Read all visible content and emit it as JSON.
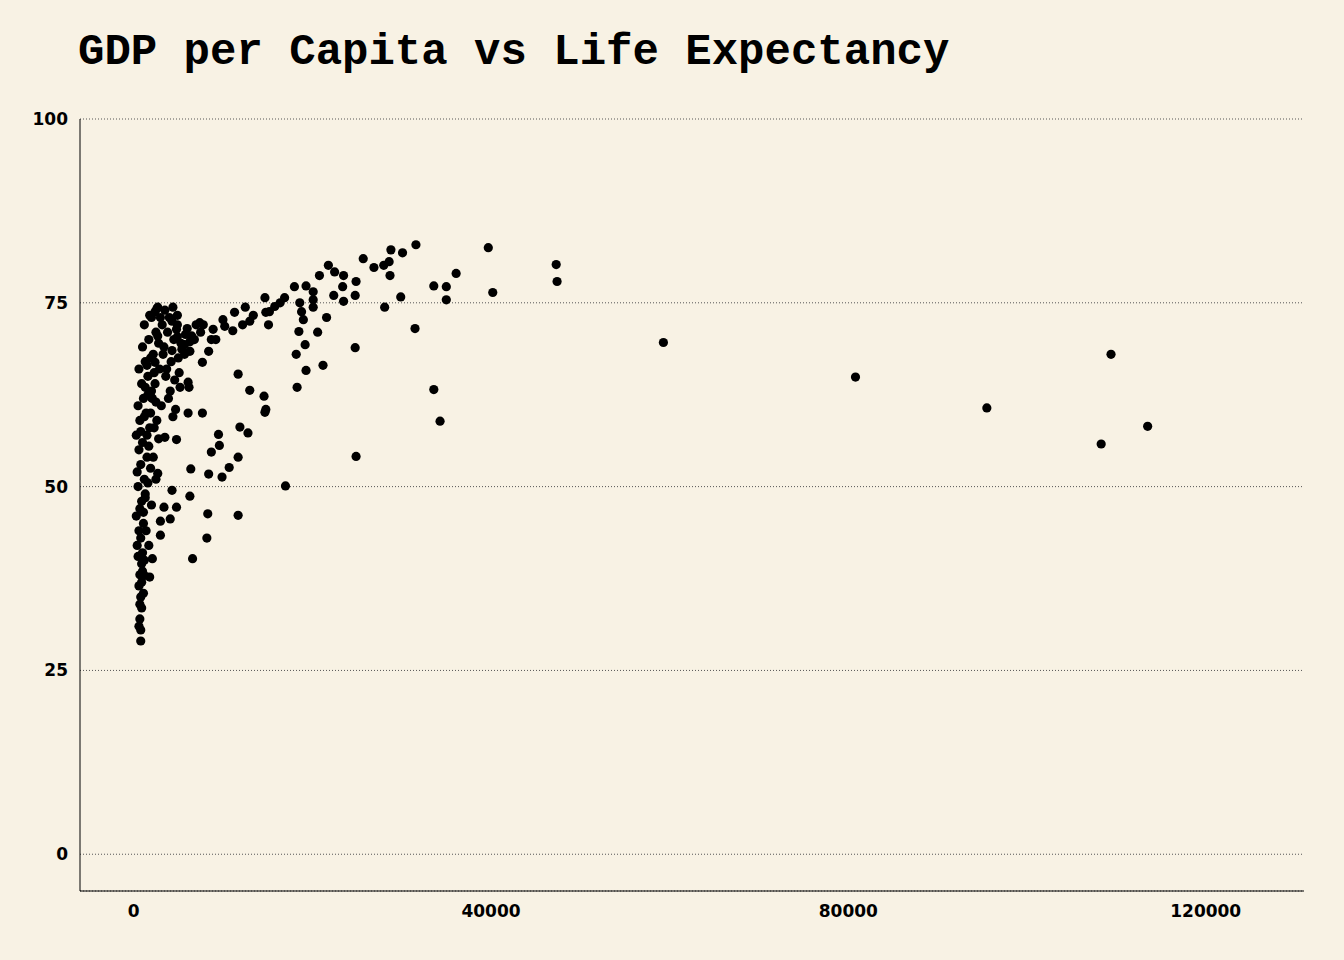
{
  "chart_data": {
    "type": "scatter",
    "title": "GDP per Capita vs Life Expectancy",
    "x": [
      113500,
      109400,
      108300,
      95500,
      80800,
      59300,
      47300,
      47400,
      40200,
      39700,
      36100,
      35000,
      35000,
      33600,
      33600,
      34300,
      31600,
      31500,
      30100,
      29900,
      28800,
      28700,
      28600,
      28000,
      28100,
      26900,
      25700,
      24900,
      24800,
      24800,
      24900,
      23500,
      23500,
      23400,
      22500,
      21800,
      22400,
      20800,
      21600,
      20100,
      20100,
      20100,
      20600,
      21200,
      19300,
      19000,
      19200,
      19300,
      18600,
      18800,
      18500,
      18000,
      18200,
      18300,
      17000,
      16900,
      16400,
      15800,
      15200,
      14700,
      14800,
      15100,
      14600,
      14800,
      14700,
      13400,
      13000,
      12500,
      12200,
      13000,
      12800,
      11700,
      11900,
      11700,
      11700,
      11300,
      11100,
      10700,
      9900,
      10200,
      10000,
      9500,
      9600,
      8700,
      8900,
      9200,
      8700,
      8300,
      8200,
      8400,
      8400,
      7800,
      7400,
      7700,
      7700,
      6400,
      6300,
      6600,
      6800,
      6300,
      6300,
      6200,
      6100,
      6100,
      5700,
      5700,
      5400,
      4900,
      4900,
      4800,
      4900,
      4400,
      4300,
      4800,
      4700,
      4800,
      4300,
      4100,
      3500,
      3400,
      3000,
      3000,
      2700,
      2700,
      2400,
      2400,
      2000,
      1800,
      2100,
      1800,
      1200,
      800,
      800,
      700,
      900,
      800,
      600,
      700,
      900,
      500,
      1000,
      400,
      800,
      600,
      1100,
      300,
      700,
      900,
      1300,
      500,
      1200,
      400,
      800,
      1500,
      600,
      1000,
      300,
      1800,
      700,
      1400,
      500,
      1100,
      2000,
      900,
      1600,
      600,
      1300,
      2200,
      1000,
      1700,
      2500,
      1200,
      3000,
      2600,
      3500,
      4000,
      3200,
      3800,
      4500,
      2800,
      3300,
      4200,
      2900,
      3600,
      2400,
      4100,
      2100,
      3100,
      1900,
      2600,
      2300,
      1500,
      2800,
      1700,
      2200,
      1900,
      2500,
      1600,
      1300,
      2000,
      1100,
      1400,
      1700,
      1200,
      1000,
      900,
      1100,
      700,
      600,
      1300,
      1500,
      2700,
      1900,
      2300,
      3400,
      2000,
      1600,
      1200,
      800,
      2500,
      3700,
      4300,
      5000,
      5300,
      5800,
      6000,
      7000,
      6500,
      7500,
      5100,
      4600,
      4400,
      5200,
      3900
    ],
    "values": [
      58.2,
      68.0,
      55.8,
      60.7,
      64.9,
      69.6,
      80.2,
      77.9,
      76.4,
      82.5,
      79.0,
      77.2,
      75.4,
      77.3,
      63.2,
      58.9,
      82.9,
      71.5,
      81.8,
      75.8,
      82.2,
      78.7,
      80.6,
      80.1,
      74.4,
      79.8,
      81.0,
      77.9,
      76.0,
      68.9,
      54.1,
      78.7,
      75.2,
      77.2,
      79.2,
      80.1,
      76.0,
      78.7,
      73.0,
      76.5,
      75.4,
      74.4,
      71.0,
      66.5,
      77.3,
      72.7,
      69.3,
      65.8,
      75.0,
      73.8,
      71.1,
      77.2,
      68.0,
      63.5,
      50.1,
      75.7,
      75.0,
      74.5,
      73.8,
      75.7,
      73.7,
      72.0,
      62.3,
      60.5,
      60.1,
      73.3,
      72.5,
      74.4,
      72.0,
      63.1,
      57.3,
      65.3,
      58.1,
      54.0,
      46.1,
      73.7,
      71.2,
      52.6,
      51.3,
      71.8,
      72.7,
      57.1,
      55.6,
      54.7,
      71.4,
      70.0,
      70.0,
      46.3,
      43.0,
      51.7,
      68.4,
      72.0,
      72.3,
      66.9,
      60.0,
      52.4,
      48.7,
      40.2,
      70.0,
      69.7,
      68.4,
      63.5,
      64.2,
      60.0,
      69.3,
      68.0,
      68.7,
      70.4,
      73.3,
      71.4,
      72.0,
      74.4,
      72.5,
      56.4,
      60.5,
      47.2,
      49.5,
      45.6,
      56.7,
      47.2,
      43.4,
      45.3,
      51.8,
      74.4,
      73.8,
      66.9,
      62.1,
      73.3,
      40.2,
      37.7,
      37.9,
      29.0,
      30.5,
      32.0,
      33.5,
      35.0,
      36.5,
      38.0,
      39.5,
      40.5,
      41.0,
      42.0,
      43.0,
      44.0,
      45.0,
      46.0,
      47.0,
      48.0,
      49.0,
      50.0,
      51.0,
      52.0,
      53.0,
      54.0,
      55.0,
      56.0,
      57.0,
      58.0,
      59.0,
      60.0,
      61.0,
      62.0,
      63.0,
      64.0,
      65.0,
      66.0,
      67.0,
      68.0,
      69.0,
      70.0,
      71.0,
      72.0,
      73.0,
      74.2,
      74.0,
      73.0,
      72.0,
      71.0,
      70.0,
      69.5,
      68.0,
      67.0,
      66.0,
      65.0,
      64.0,
      63.0,
      62.0,
      61.0,
      60.0,
      59.0,
      58.0,
      57.0,
      56.5,
      55.5,
      54.0,
      52.5,
      51.0,
      50.5,
      48.5,
      47.5,
      46.5,
      44.0,
      42.0,
      40.0,
      38.5,
      37.0,
      35.5,
      34.0,
      31.0,
      63.5,
      66.5,
      70.5,
      67.5,
      65.5,
      69.0,
      73.0,
      62.5,
      59.5,
      57.5,
      61.5,
      66.0,
      68.5,
      67.5,
      69.5,
      70.7,
      71.5,
      72.0,
      70.5,
      71.0,
      65.5,
      64.5,
      59.5,
      63.5,
      62.0
    ],
    "color": "#000000",
    "marker": "circle",
    "xlim": [
      -6000,
      131000
    ],
    "xticks": [
      0,
      40000,
      80000,
      120000
    ],
    "ylim": [
      -5,
      100
    ],
    "yticks": [
      0,
      25,
      50,
      75,
      100
    ],
    "grid": true
  }
}
